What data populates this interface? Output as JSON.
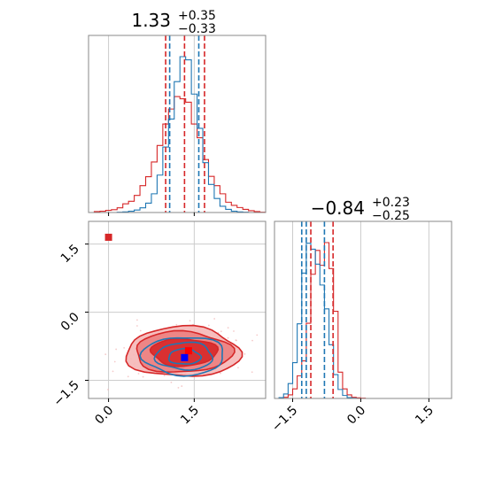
{
  "chart_data": {
    "type": "corner",
    "parameters": [
      {
        "title_main": "1.33",
        "title_sup": "+0.35",
        "title_sub": "−0.33",
        "range": [
          -0.35,
          2.75
        ],
        "ticks": [
          0.0,
          1.5
        ],
        "tick_labels": [
          "0.0",
          "1.5"
        ],
        "quantile_lines": {
          "red": [
            1.0,
            1.33,
            1.68
          ],
          "blue": [
            1.07,
            1.58
          ]
        }
      },
      {
        "title_main": "−0.84",
        "title_sup": "+0.23",
        "title_sub": "−0.25",
        "range": [
          -1.9,
          2.0
        ],
        "ticks": [
          -1.5,
          0.0,
          1.5
        ],
        "tick_labels": [
          "−1.5",
          "0.0",
          "1.5"
        ],
        "quantile_lines": {
          "red": [
            -1.1,
            -0.61
          ],
          "blue": [
            -1.3,
            -1.2,
            -0.8
          ]
        }
      }
    ],
    "series": [
      {
        "color": "#d62728",
        "hist_x": {
          "edges": [
            -0.35,
            -0.25,
            -0.15,
            -0.05,
            0.05,
            0.15,
            0.25,
            0.35,
            0.45,
            0.55,
            0.65,
            0.75,
            0.85,
            0.95,
            1.05,
            1.15,
            1.25,
            1.35,
            1.45,
            1.55,
            1.65,
            1.75,
            1.85,
            1.95,
            2.05,
            2.15,
            2.25,
            2.35,
            2.45,
            2.55,
            2.65,
            2.75
          ],
          "counts": [
            0,
            0.3,
            0.4,
            0.7,
            0.9,
            1.5,
            2.8,
            3.6,
            5.5,
            8.6,
            11.5,
            16.2,
            21.5,
            28.4,
            33.2,
            37.2,
            36.5,
            35.4,
            28.4,
            24.0,
            17.0,
            11.6,
            8.6,
            6.0,
            3.3,
            2.3,
            1.6,
            1.0,
            0.6,
            0.3,
            0.1
          ]
        },
        "hist_y": {
          "edges": [
            -1.9,
            -1.8,
            -1.7,
            -1.6,
            -1.5,
            -1.4,
            -1.3,
            -1.2,
            -1.1,
            -1.0,
            -0.9,
            -0.8,
            -0.7,
            -0.6,
            -0.5,
            -0.4,
            -0.3,
            -0.2,
            -0.1,
            0.0,
            0.1,
            0.2,
            0.3,
            0.4,
            0.5,
            0.6,
            0.7,
            0.8,
            0.9,
            1.0,
            1.1,
            1.2,
            1.3,
            1.4,
            1.5,
            1.6,
            1.7,
            1.8,
            1.9,
            2.0
          ],
          "counts": [
            0,
            0.1,
            0.4,
            1.2,
            3.2,
            7.6,
            12.6,
            25.2,
            41.6,
            49.6,
            44.6,
            52.2,
            43.5,
            29.2,
            8.8,
            3.2,
            1.2,
            0.4,
            0.2,
            0.1,
            0,
            0,
            0,
            0,
            0,
            0,
            0,
            0,
            0,
            0,
            0,
            0,
            0,
            0,
            0,
            0,
            0,
            0,
            0
          ]
        },
        "marker": [
          1.4,
          -0.85
        ]
      },
      {
        "color": "#1f77b4",
        "hist_x": {
          "edges": [
            -0.35,
            -0.25,
            -0.15,
            -0.05,
            0.05,
            0.15,
            0.25,
            0.35,
            0.45,
            0.55,
            0.65,
            0.75,
            0.85,
            0.95,
            1.05,
            1.15,
            1.25,
            1.35,
            1.45,
            1.55,
            1.65,
            1.75,
            1.85,
            1.95,
            2.05,
            2.15,
            2.25,
            2.35,
            2.45,
            2.55,
            2.65,
            2.75
          ],
          "counts": [
            0,
            0,
            0,
            0,
            0,
            0.1,
            0.2,
            0.4,
            0.8,
            1.5,
            3.0,
            6.0,
            12.0,
            21.0,
            30.0,
            42.0,
            50.0,
            49.0,
            38.0,
            27.0,
            16.0,
            9.0,
            4.5,
            2.0,
            1.0,
            0.4,
            0.2,
            0.1,
            0,
            0,
            0
          ]
        },
        "hist_y": {
          "edges": [
            -1.9,
            -1.8,
            -1.7,
            -1.6,
            -1.5,
            -1.4,
            -1.3,
            -1.2,
            -1.1,
            -1.0,
            -0.9,
            -0.8,
            -0.7,
            -0.6,
            -0.5,
            -0.4,
            -0.3,
            -0.2,
            -0.1,
            0.0,
            0.1,
            0.2,
            0.3,
            0.4,
            0.5,
            0.6,
            0.7,
            0.8,
            0.9,
            1.0,
            1.1,
            1.2,
            1.3,
            1.4,
            1.5,
            1.6,
            1.7,
            1.8,
            1.9,
            2.0
          ],
          "counts": [
            0,
            0.3,
            1.5,
            5.0,
            12.0,
            25.0,
            42.0,
            52.0,
            50.0,
            45.0,
            38.0,
            30.0,
            18.0,
            8.0,
            3.0,
            1.0,
            0.3,
            0.1,
            0,
            0,
            0,
            0,
            0,
            0,
            0,
            0,
            0,
            0,
            0,
            0,
            0,
            0,
            0,
            0,
            0,
            0,
            0,
            0,
            0
          ]
        },
        "marker": [
          1.33,
          -1.0
        ]
      }
    ],
    "contours": [
      {
        "color": "#d62728",
        "level": 3,
        "center": [
          1.3,
          -0.88
        ],
        "rx": 1.0,
        "ry": 0.55,
        "filled": true,
        "fill": "#f5b7b7"
      },
      {
        "color": "#d62728",
        "level": 2,
        "center": [
          1.3,
          -0.88
        ],
        "rx": 0.85,
        "ry": 0.45,
        "filled": true,
        "fill": "#ec7f7f"
      },
      {
        "color": "#d62728",
        "level": 1,
        "center": [
          1.32,
          -0.88
        ],
        "rx": 0.58,
        "ry": 0.3,
        "filled": true,
        "fill": "#d62728"
      },
      {
        "color": "#1f77b4",
        "level": 3,
        "center": [
          1.32,
          -0.96
        ],
        "rx": 0.72,
        "ry": 0.42,
        "filled": false,
        "fill": ""
      },
      {
        "color": "#1f77b4",
        "level": 2,
        "center": [
          1.33,
          -0.97
        ],
        "rx": 0.5,
        "ry": 0.3,
        "filled": false,
        "fill": ""
      },
      {
        "color": "#1f77b4",
        "level": 1,
        "center": [
          1.33,
          -0.98
        ],
        "rx": 0.28,
        "ry": 0.17,
        "filled": false,
        "fill": ""
      }
    ],
    "outlier_markers": [
      {
        "color": "#d62728",
        "x": 0.0,
        "y": 1.65
      }
    ],
    "joint_xlim": [
      -0.35,
      2.75
    ],
    "joint_ylim": [
      -1.9,
      2.0
    ],
    "grid": true
  }
}
